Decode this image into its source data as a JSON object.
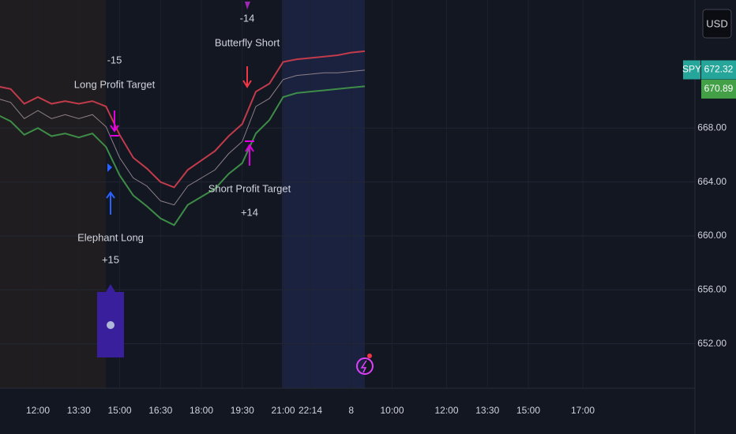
{
  "chart_data": {
    "type": "line",
    "categories": [
      null,
      null,
      null,
      "12:00",
      null,
      null,
      "13:30",
      null,
      null,
      "15:00",
      null,
      null,
      "16:30",
      null,
      null,
      "18:00",
      null,
      null,
      "19:30",
      null,
      null,
      "21:00",
      null,
      "22:14",
      null,
      null,
      "8",
      null,
      null,
      "10:00",
      null,
      null,
      null,
      "12:00",
      null,
      null,
      "13:30",
      null,
      null,
      "15:00",
      null,
      null,
      null,
      "17:00",
      null,
      null,
      null,
      null,
      null,
      null,
      null,
      null
    ],
    "series": [
      {
        "color": "#c23b4b",
        "values": [
          671.1,
          670.9,
          669.8,
          670.3,
          669.8,
          670.0,
          669.8,
          670.0,
          669.6,
          667.5,
          665.8,
          665.0,
          664.0,
          663.6,
          664.9,
          665.6,
          666.3,
          667.4,
          668.3,
          670.7,
          671.3,
          672.9,
          673.1,
          673.2,
          673.3,
          673.4,
          673.6,
          673.7,
          null,
          null,
          null,
          null,
          null,
          null,
          null,
          null,
          null,
          null,
          null,
          null,
          null,
          null,
          null,
          null,
          null,
          null,
          null,
          null,
          null,
          null,
          null,
          null
        ]
      },
      {
        "color": "#3d8c47",
        "values": [
          669.0,
          668.5,
          667.5,
          668.0,
          667.4,
          667.6,
          667.3,
          667.6,
          666.6,
          664.5,
          663.0,
          662.2,
          661.3,
          660.8,
          662.3,
          662.9,
          663.5,
          664.6,
          665.4,
          667.6,
          668.6,
          670.3,
          670.6,
          670.7,
          670.8,
          670.9,
          671.0,
          671.1,
          null,
          null,
          null,
          null,
          null,
          null,
          null,
          null,
          null,
          null,
          null,
          null,
          null,
          null,
          null,
          null,
          null,
          null,
          null,
          null,
          null,
          null,
          null,
          null
        ]
      },
      {
        "name": "SPY",
        "color": "#8d7f86",
        "values": [
          670.2,
          669.9,
          668.7,
          669.3,
          668.7,
          669.0,
          668.7,
          669.0,
          668.1,
          665.8,
          664.3,
          663.7,
          662.6,
          662.3,
          663.7,
          664.3,
          664.9,
          666.1,
          667.0,
          669.6,
          670.2,
          671.6,
          671.9,
          672.0,
          672.1,
          672.1,
          672.2,
          672.3,
          null,
          null,
          null,
          null,
          null,
          null,
          null,
          null,
          null,
          null,
          null,
          null,
          null,
          null,
          null,
          null,
          null,
          null,
          null,
          null,
          null,
          null,
          null,
          null
        ]
      }
    ],
    "ylim": [
      648.7,
      677.5
    ],
    "yticks": [
      {
        "value": 652,
        "label": "652.00"
      },
      {
        "value": 656,
        "label": "656.00"
      },
      {
        "value": 660,
        "label": "660.00"
      },
      {
        "value": 664,
        "label": "664.00"
      },
      {
        "value": 668,
        "label": "668.00"
      }
    ],
    "currency": "USD",
    "price_tags": [
      {
        "label": "SPY",
        "value": 672.32,
        "color": "#26a69a"
      },
      {
        "value": 670.89,
        "color": "#43a047"
      }
    ],
    "annotations": [
      "-15",
      "Long Profit Target",
      "-14",
      "Butterfly Short",
      "Short Profit Target",
      "+14",
      "Elephant Long",
      "+15"
    ],
    "grid": true
  }
}
